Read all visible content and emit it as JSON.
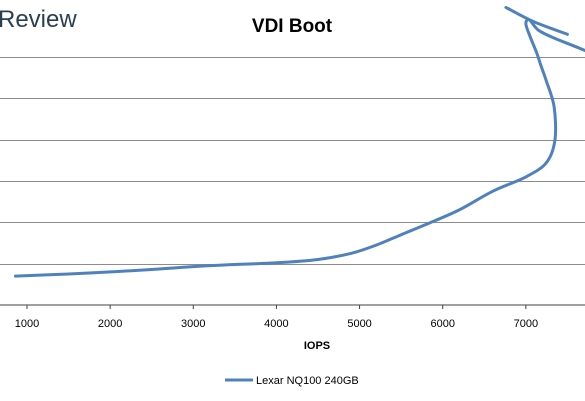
{
  "brand": {
    "logo_text": "Review"
  },
  "chart_data": {
    "type": "line",
    "title": "VDI Boot",
    "xlabel": "IOPS",
    "ylabel": "",
    "x_ticks": [
      "1000",
      "2000",
      "3000",
      "4000",
      "5000",
      "6000",
      "7000"
    ],
    "xlim": [
      800,
      7900
    ],
    "ylim": [
      0,
      7
    ],
    "grid": true,
    "legend_position": "bottom-center",
    "colors": {
      "series": "#4f81bd",
      "grid": "#8c8c8c",
      "axis": "#404040"
    },
    "series": [
      {
        "name": "Lexar NQ100 240GB",
        "x": [
          860,
          1500,
          2000,
          2500,
          3000,
          3500,
          4000,
          4500,
          4900,
          5200,
          5500,
          5800,
          6200,
          6600,
          7000,
          7250,
          7350,
          7340,
          7250,
          7180,
          7130,
          7050,
          7000,
          7040,
          7150,
          7350,
          7600,
          7900
        ],
        "y": [
          0.7,
          0.75,
          0.8,
          0.86,
          0.93,
          0.98,
          1.02,
          1.1,
          1.25,
          1.45,
          1.7,
          1.95,
          2.3,
          2.75,
          3.1,
          3.45,
          4.0,
          4.8,
          5.4,
          5.8,
          6.1,
          6.5,
          6.8,
          6.9,
          6.65,
          6.45,
          6.25,
          6.0
        ]
      },
      {
        "name": "",
        "x": [
          6760,
          7100,
          7500
        ],
        "y": [
          7.2,
          6.85,
          6.55
        ]
      }
    ]
  }
}
